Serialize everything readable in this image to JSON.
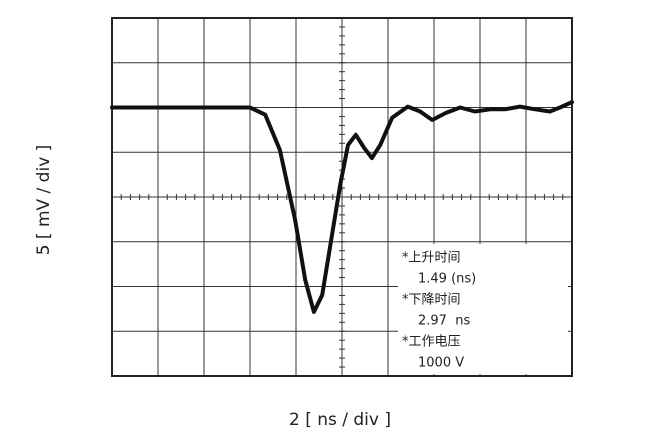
{
  "chart_data": {
    "type": "line",
    "x_label": "2 [ ns / div ]",
    "y_label": "5 [ mV / div ]",
    "x": [
      0,
      3.0,
      3.33,
      3.65,
      3.98,
      4.2,
      4.39,
      4.57,
      4.8,
      4.96,
      5.13,
      5.3,
      5.48,
      5.65,
      5.83,
      6.09,
      6.43,
      6.7,
      6.96,
      7.26,
      7.57,
      7.89,
      8.22,
      8.54,
      8.87,
      9.2,
      9.52,
      9.74,
      10
    ],
    "values": [
      2.0,
      2.0,
      1.84,
      1.05,
      -0.51,
      -1.85,
      -2.57,
      -2.19,
      -0.74,
      0.27,
      1.16,
      1.39,
      1.1,
      0.87,
      1.16,
      1.77,
      2.02,
      1.91,
      1.72,
      1.88,
      2.0,
      1.91,
      1.96,
      1.96,
      2.02,
      1.96,
      1.91,
      2.0,
      2.12
    ],
    "color": "#111111",
    "xlim": [
      0,
      10
    ],
    "ylim": [
      -4,
      4
    ],
    "xticks": [
      0,
      1,
      2,
      3,
      4,
      5,
      6,
      7,
      8,
      9,
      10
    ],
    "yticks": [
      -4,
      -3,
      -2,
      -1,
      0,
      1,
      2,
      3,
      4
    ],
    "grid": true,
    "annotations": [
      "*上升时间",
      "1.49 (ns)",
      "*下降时间",
      "2.97  ns",
      "*工作电压",
      "1000 V"
    ]
  }
}
